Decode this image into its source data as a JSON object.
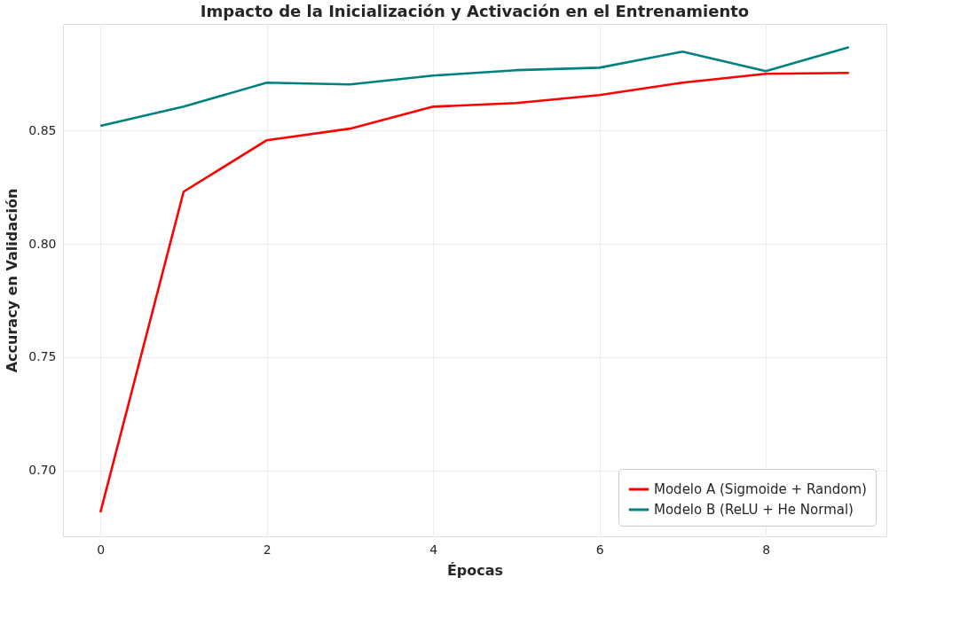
{
  "chart_data": {
    "type": "line",
    "title": "Impacto de la Inicialización y Activación en el Entrenamiento",
    "xlabel": "Épocas",
    "ylabel": "Accuracy en Validación",
    "x": [
      0,
      1,
      2,
      3,
      4,
      5,
      6,
      7,
      8,
      9
    ],
    "series": [
      {
        "name": "Modelo A (Sigmoide + Random)",
        "color": "#ff0000",
        "values": [
          0.6816,
          0.823,
          0.8457,
          0.8508,
          0.8605,
          0.8621,
          0.8656,
          0.8711,
          0.875,
          0.8754
        ]
      },
      {
        "name": "Modelo B (ReLU + He Normal)",
        "color": "#008080",
        "values": [
          0.852,
          0.8605,
          0.8711,
          0.8703,
          0.8742,
          0.8766,
          0.8777,
          0.8848,
          0.8762,
          0.8867
        ]
      }
    ],
    "xlim": [
      -0.45,
      9.45
    ],
    "xticks": [
      0,
      2,
      4,
      6,
      8
    ],
    "ylim": [
      0.671,
      0.897
    ],
    "yticks": [
      {
        "value": 0.7,
        "label": "0.70"
      },
      {
        "value": 0.75,
        "label": "0.75"
      },
      {
        "value": 0.8,
        "label": "0.80"
      },
      {
        "value": 0.85,
        "label": "0.85"
      }
    ],
    "grid": true,
    "legend": "bottom right"
  }
}
